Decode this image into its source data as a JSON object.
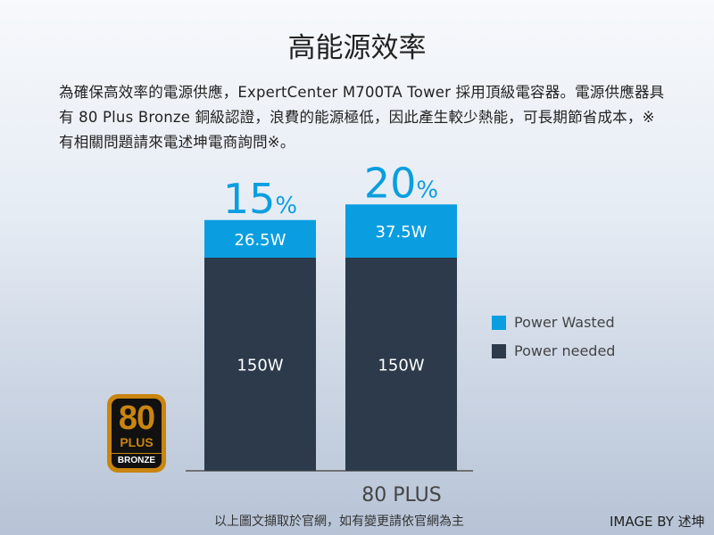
{
  "title": "高能源效率",
  "description": "為確保高效率的電源供應，ExpertCenter M700TA Tower 採用頂級電容器。電源供應器具有 80 Plus Bronze 銅級認證，浪費的能源極低，因此產生較少熱能，可長期節省成本，※有相關問題請來電述坤電商詢問※。",
  "badge": {
    "top": "80",
    "middle": "PLUS",
    "bottom": "BRONZE"
  },
  "footer_note": "以上圖文擷取於官網，如有變更請依官網為主",
  "credit": "IMAGE BY 述坤",
  "chart_data": {
    "type": "bar",
    "stacked": true,
    "xlabel": "80 PLUS",
    "categories": [
      "",
      ""
    ],
    "series": [
      {
        "name": "Power needed",
        "color": "#2c3a4b",
        "values": [
          150,
          150
        ],
        "labels": [
          "150W",
          "150W"
        ]
      },
      {
        "name": "Power Wasted",
        "color": "#0a9ee0",
        "values": [
          26.5,
          37.5
        ],
        "labels": [
          "26.5W",
          "37.5W"
        ]
      }
    ],
    "top_labels": [
      {
        "num": "15",
        "unit": "%"
      },
      {
        "num": "20",
        "unit": "%"
      }
    ],
    "legend_position": "right",
    "grid": false
  }
}
